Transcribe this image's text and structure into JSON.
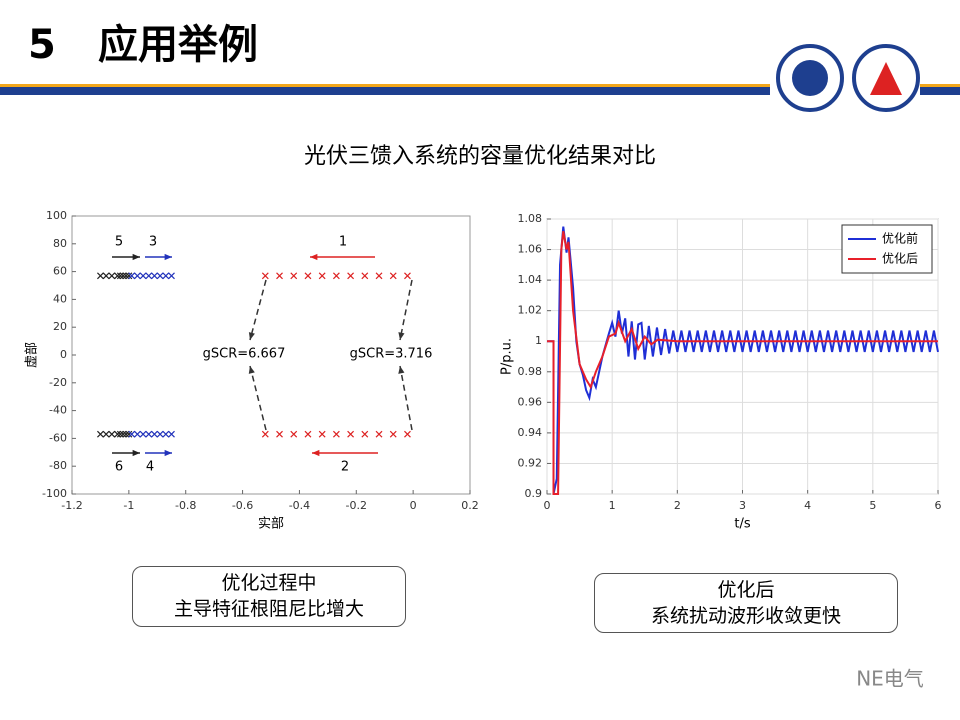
{
  "header": {
    "number": "5",
    "title": "应用举例"
  },
  "subtitle": "光伏三馈入系统的容量优化结果对比",
  "chart_data": [
    {
      "type": "scatter",
      "xlabel": "实部",
      "ylabel": "虚部",
      "grid": false,
      "xlim": [
        -1.2,
        0.2
      ],
      "xticks": [
        -1.2,
        -1,
        -0.8,
        -0.6,
        -0.4,
        -0.2,
        0,
        0.2
      ],
      "ylim": [
        -100,
        100
      ],
      "yticks": [
        -100,
        -80,
        -60,
        -40,
        -20,
        0,
        20,
        40,
        60,
        80,
        100
      ],
      "annotations": [
        "1",
        "2",
        "3",
        "4",
        "5",
        "6",
        "gSCR=6.667",
        "gSCR=3.716"
      ],
      "series": [
        {
          "color": "#222222",
          "x": [
            -1.1,
            -1.08,
            -1.06,
            -1.04,
            -1.03,
            -1.02,
            -1.01,
            -1.0
          ],
          "y": [
            57,
            57,
            57,
            57,
            57,
            57,
            57,
            57
          ]
        },
        {
          "color": "#2233bb",
          "x": [
            -0.99,
            -0.97,
            -0.95,
            -0.93,
            -0.91,
            -0.89,
            -0.87,
            -0.85
          ],
          "y": [
            57,
            57,
            57,
            57,
            57,
            57,
            57,
            57
          ]
        },
        {
          "color": "#dd2222",
          "x": [
            -0.52,
            -0.47,
            -0.42,
            -0.37,
            -0.32,
            -0.27,
            -0.22,
            -0.17,
            -0.12,
            -0.07,
            -0.02
          ],
          "y": [
            57,
            57,
            57,
            57,
            57,
            57,
            57,
            57,
            57,
            57,
            57
          ]
        },
        {
          "color": "#222222",
          "x": [
            -1.1,
            -1.08,
            -1.06,
            -1.04,
            -1.03,
            -1.02,
            -1.01,
            -1.0
          ],
          "y": [
            -57,
            -57,
            -57,
            -57,
            -57,
            -57,
            -57,
            -57
          ]
        },
        {
          "color": "#2233bb",
          "x": [
            -0.99,
            -0.97,
            -0.95,
            -0.93,
            -0.91,
            -0.89,
            -0.87,
            -0.85
          ],
          "y": [
            -57,
            -57,
            -57,
            -57,
            -57,
            -57,
            -57,
            -57
          ]
        },
        {
          "color": "#dd2222",
          "x": [
            -0.52,
            -0.47,
            -0.42,
            -0.37,
            -0.32,
            -0.27,
            -0.22,
            -0.17,
            -0.12,
            -0.07,
            -0.02
          ],
          "y": [
            -57,
            -57,
            -57,
            -57,
            -57,
            -57,
            -57,
            -57,
            -57,
            -57,
            -57
          ]
        }
      ]
    },
    {
      "type": "line",
      "xlabel": "t/s",
      "ylabel": "P/p.u.",
      "grid": true,
      "legend": "upper right",
      "xlim": [
        0,
        6
      ],
      "xticks": [
        0,
        1,
        2,
        3,
        4,
        5,
        6
      ],
      "ylim": [
        0.9,
        1.08
      ],
      "yticks": [
        0.9,
        0.92,
        0.94,
        0.96,
        0.98,
        1,
        1.02,
        1.04,
        1.06,
        1.08
      ],
      "series": [
        {
          "name": "优化前",
          "color": "#1f2fd6",
          "x": [
            0,
            0.1,
            0.1,
            0.15,
            0.2,
            0.25,
            0.3,
            0.33,
            0.4,
            0.45,
            0.5,
            0.55,
            0.6,
            0.65,
            0.7,
            0.75,
            0.85,
            0.95,
            1.0,
            1.05,
            1.1,
            1.15,
            1.2,
            1.25,
            1.3,
            1.35,
            1.4,
            1.45,
            1.5,
            1.5625,
            1.625,
            1.6875,
            1.75,
            1.8125,
            1.875,
            1.9375,
            2,
            2.0625,
            2.125,
            2.1875,
            2.25,
            2.3125,
            2.375,
            2.4375,
            2.5,
            2.5625,
            2.625,
            2.6875,
            2.75,
            2.8125,
            2.875,
            2.9375,
            3,
            3.0625,
            3.125,
            3.1875,
            3.25,
            3.3125,
            3.375,
            3.4375,
            3.5,
            3.5625,
            3.625,
            3.6875,
            3.75,
            3.8125,
            3.875,
            3.9375,
            4,
            4.0625,
            4.125,
            4.1875,
            4.25,
            4.3125,
            4.375,
            4.4375,
            4.5,
            4.5625,
            4.625,
            4.6875,
            4.75,
            4.8125,
            4.875,
            4.9375,
            5,
            5.0625,
            5.125,
            5.1875,
            5.25,
            5.3125,
            5.375,
            5.4375,
            5.5,
            5.5625,
            5.625,
            5.6875,
            5.75,
            5.8125,
            5.875,
            5.9375,
            6
          ],
          "values": [
            1,
            1,
            0.9,
            0.91,
            1.05,
            1.075,
            1.058,
            1.068,
            1.035,
            1.0,
            0.985,
            0.978,
            0.968,
            0.963,
            0.975,
            0.97,
            0.99,
            1.005,
            1.012,
            1.003,
            1.02,
            1.005,
            1.015,
            0.99,
            1.013,
            0.988,
            1.011,
            1.012,
            0.988,
            1.01,
            0.99,
            1.009,
            0.991,
            1.008,
            0.992,
            1.007,
            0.993,
            1.007,
            0.993,
            1.007,
            0.993,
            1.007,
            0.993,
            1.007,
            0.993,
            1.007,
            0.993,
            1.007,
            0.993,
            1.007,
            0.993,
            1.007,
            0.993,
            1.007,
            0.993,
            1.007,
            0.993,
            1.007,
            0.993,
            1.007,
            0.993,
            1.007,
            0.993,
            1.007,
            0.993,
            1.007,
            0.993,
            1.007,
            0.993,
            1.007,
            0.993,
            1.007,
            0.993,
            1.007,
            0.993,
            1.007,
            0.993,
            1.007,
            0.993,
            1.007,
            0.993,
            1.007,
            0.993,
            1.007,
            0.993,
            1.007,
            0.993,
            1.007,
            0.993,
            1.007,
            0.993,
            1.007,
            0.993,
            1.007,
            0.993,
            1.007,
            0.993,
            1.007,
            0.993,
            1.007,
            0.993
          ]
        },
        {
          "name": "优化后",
          "color": "#e8202a",
          "x": [
            0,
            0.1,
            0.1,
            0.17,
            0.22,
            0.25,
            0.3,
            0.33,
            0.4,
            0.5,
            0.6,
            0.67,
            0.75,
            0.85,
            0.95,
            1.05,
            1.1,
            1.2,
            1.3,
            1.4,
            1.5,
            1.6,
            1.7,
            2,
            6
          ],
          "values": [
            1,
            1,
            0.9,
            0.9,
            1.06,
            1.072,
            1.06,
            1.065,
            1.02,
            0.985,
            0.975,
            0.97,
            0.98,
            0.99,
            1.003,
            1.005,
            1.012,
            1.0,
            1.008,
            0.995,
            1.003,
            0.998,
            1.001,
            1.0,
            1.0
          ]
        }
      ]
    }
  ],
  "captions": [
    [
      "优化过程中",
      "主导特征根阻尼比增大"
    ],
    [
      "优化后",
      "系统扰动波形收敛更快"
    ]
  ],
  "watermark": "NE电气"
}
